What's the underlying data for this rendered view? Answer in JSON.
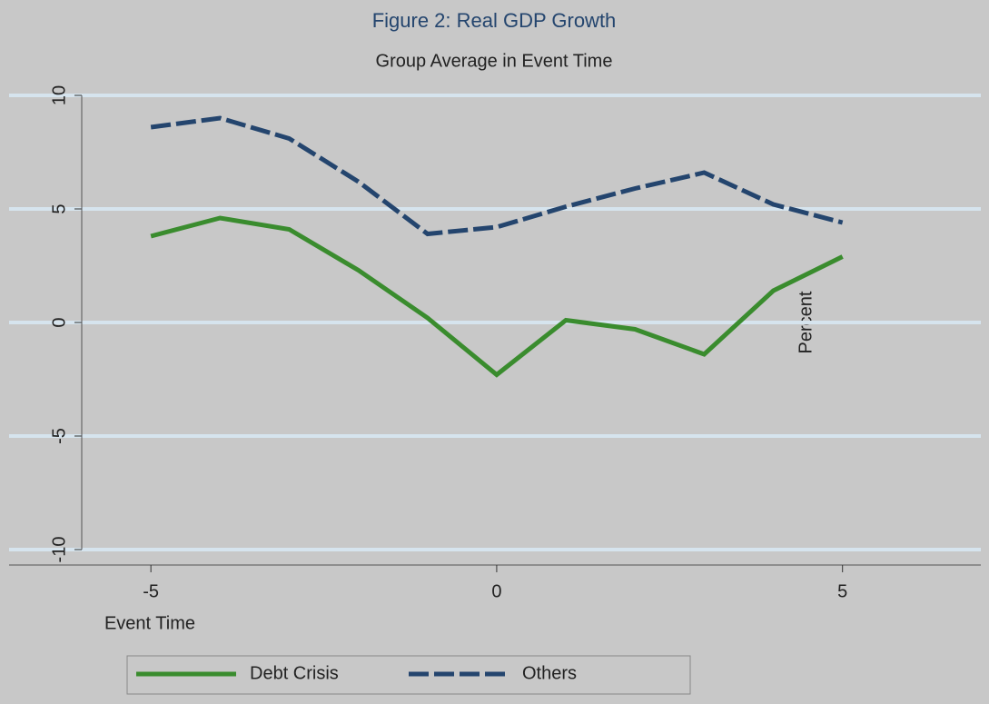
{
  "chart_data": {
    "type": "line",
    "title": "Figure 2: Real GDP Growth",
    "subtitle": "Group Average in Event Time",
    "xlabel": "Event Time",
    "ylabel": "Percent",
    "x": [
      -5,
      -4,
      -3,
      -2,
      -1,
      0,
      1,
      2,
      3,
      4,
      5
    ],
    "xlim": [
      -6,
      7
    ],
    "xticks": [
      -5,
      0,
      5
    ],
    "ylim": [
      -11,
      11
    ],
    "yticks": [
      -10,
      -5,
      0,
      5,
      10
    ],
    "grid": true,
    "legend": "bottom",
    "series": [
      {
        "name": "Debt Crisis",
        "color": "#3a8c2e",
        "dash": false,
        "values": [
          3.8,
          4.6,
          4.1,
          2.3,
          0.2,
          -2.3,
          0.1,
          -0.3,
          -1.4,
          1.4,
          2.9
        ]
      },
      {
        "name": "Others",
        "color": "#24456e",
        "dash": true,
        "values": [
          8.6,
          9.0,
          8.1,
          6.2,
          3.9,
          4.2,
          5.1,
          5.9,
          6.6,
          5.2,
          4.4
        ]
      }
    ]
  }
}
